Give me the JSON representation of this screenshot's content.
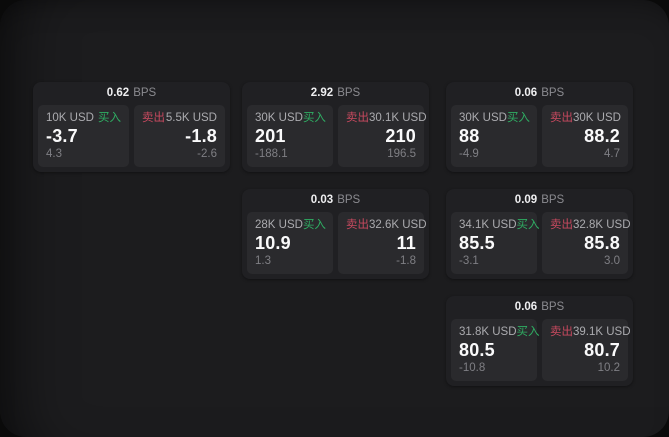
{
  "labels": {
    "bps": "BPS",
    "buy": "买入",
    "sell": "卖出"
  },
  "colors": {
    "buy_green": "#2fae63",
    "sell_red": "#c8495f",
    "panel_background": "#1c1c1e",
    "card_background": "#202023",
    "tile_background": "#2a2a2d"
  },
  "columns": [
    {
      "cards": [
        {
          "bps": "0.62",
          "buy": {
            "amount": "10K USD",
            "main": "-3.7",
            "sub": "4.3"
          },
          "sell": {
            "amount": "5.5K USD",
            "main": "-1.8",
            "sub": "-2.6"
          }
        }
      ]
    },
    {
      "cards": [
        {
          "bps": "2.92",
          "buy": {
            "amount": "30K USD",
            "main": "201",
            "sub": "-188.1"
          },
          "sell": {
            "amount": "30.1K USD",
            "main": "210",
            "sub": "196.5"
          }
        },
        {
          "bps": "0.03",
          "buy": {
            "amount": "28K USD",
            "main": "10.9",
            "sub": "1.3"
          },
          "sell": {
            "amount": "32.6K USD",
            "main": "11",
            "sub": "-1.8"
          }
        }
      ]
    },
    {
      "cards": [
        {
          "bps": "0.06",
          "buy": {
            "amount": "30K USD",
            "main": "88",
            "sub": "-4.9"
          },
          "sell": {
            "amount": "30K USD",
            "main": "88.2",
            "sub": "4.7"
          }
        },
        {
          "bps": "0.09",
          "buy": {
            "amount": "34.1K USD",
            "main": "85.5",
            "sub": "-3.1"
          },
          "sell": {
            "amount": "32.8K USD",
            "main": "85.8",
            "sub": "3.0"
          }
        },
        {
          "bps": "0.06",
          "buy": {
            "amount": "31.8K USD",
            "main": "80.5",
            "sub": "-10.8"
          },
          "sell": {
            "amount": "39.1K USD",
            "main": "80.7",
            "sub": "10.2"
          }
        }
      ]
    }
  ]
}
